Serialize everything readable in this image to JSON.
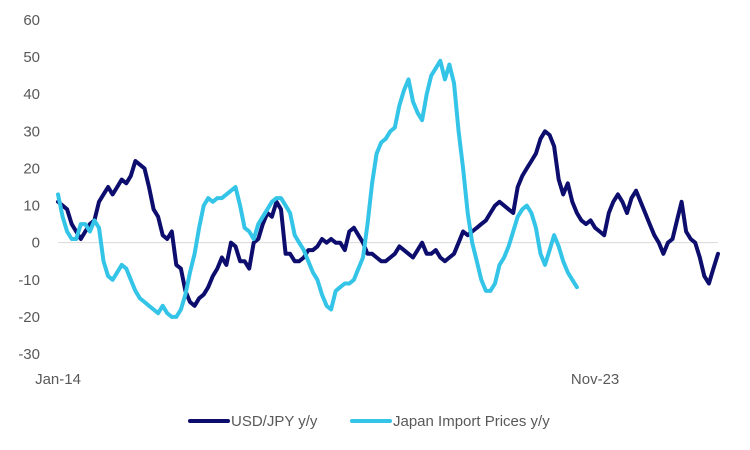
{
  "chart_data": {
    "type": "line",
    "title": "",
    "xlabel": "",
    "ylabel": "",
    "ylim": [
      -30,
      60
    ],
    "yticks": [
      60,
      50,
      40,
      30,
      20,
      10,
      0,
      -10,
      -20,
      -30
    ],
    "x_tick_labels": [
      {
        "label": "Jan-14",
        "index": 0
      },
      {
        "label": "Nov-23",
        "index": 118
      }
    ],
    "grid": false,
    "legend_position": "bottom",
    "series": [
      {
        "name": "USD/JPY y/y",
        "color": "#0d0d6e",
        "values": [
          11,
          10,
          9,
          5,
          3,
          1,
          3,
          5,
          6,
          11,
          13,
          15,
          13,
          15,
          17,
          16,
          18,
          22,
          21,
          20,
          15,
          9,
          7,
          2,
          1,
          3,
          -6,
          -7,
          -13,
          -16,
          -17,
          -15,
          -14,
          -12,
          -9,
          -7,
          -4,
          -6,
          0,
          -1,
          -5,
          -5,
          -7,
          0,
          1,
          5,
          8,
          7,
          11,
          9,
          -3,
          -3,
          -5,
          -5,
          -4,
          -2,
          -2,
          -1,
          1,
          0,
          1,
          0,
          0,
          -2,
          3,
          4,
          2,
          0,
          -3,
          -3,
          -4,
          -5,
          -5,
          -4,
          -3,
          -1,
          -2,
          -3,
          -4,
          -2,
          0,
          -3,
          -3,
          -2,
          -4,
          -5,
          -4,
          -3,
          0,
          3,
          2,
          3,
          4,
          5,
          6,
          8,
          10,
          11,
          10,
          9,
          8,
          15,
          18,
          20,
          22,
          24,
          28,
          30,
          29,
          26,
          17,
          13,
          16,
          11,
          8,
          6,
          5,
          6,
          4,
          3,
          2,
          8,
          11,
          13,
          11,
          8,
          12,
          14,
          11,
          8,
          5,
          2,
          0,
          -3,
          0,
          1,
          6,
          11,
          3,
          1,
          0,
          -4,
          -9,
          -11,
          -7,
          -3
        ]
      },
      {
        "name": "Japan Import Prices y/y",
        "color": "#33c4e8",
        "values": [
          13,
          7,
          3,
          1,
          1,
          5,
          5,
          3,
          6,
          4,
          -5,
          -9,
          -10,
          -8,
          -6,
          -7,
          -10,
          -13,
          -15,
          -16,
          -17,
          -18,
          -19,
          -17,
          -19,
          -20,
          -20,
          -18,
          -14,
          -8,
          -3,
          4,
          10,
          12,
          11,
          12,
          12,
          13,
          14,
          15,
          10,
          4,
          3,
          1,
          5,
          7,
          9,
          11,
          12,
          12,
          10,
          8,
          2,
          0,
          -2,
          -5,
          -8,
          -10,
          -14,
          -17,
          -18,
          -13,
          -12,
          -11,
          -11,
          -10,
          -7,
          -4,
          5,
          16,
          24,
          27,
          28,
          30,
          31,
          37,
          41,
          44,
          38,
          35,
          33,
          40,
          45,
          47,
          49,
          44,
          48,
          43,
          30,
          20,
          8,
          0,
          -5,
          -10,
          -13,
          -13,
          -11,
          -6,
          -4,
          -1,
          3,
          7,
          9,
          10,
          8,
          4,
          -3,
          -6,
          -2,
          2,
          -1,
          -5,
          -8,
          -10,
          -12
        ]
      }
    ]
  }
}
